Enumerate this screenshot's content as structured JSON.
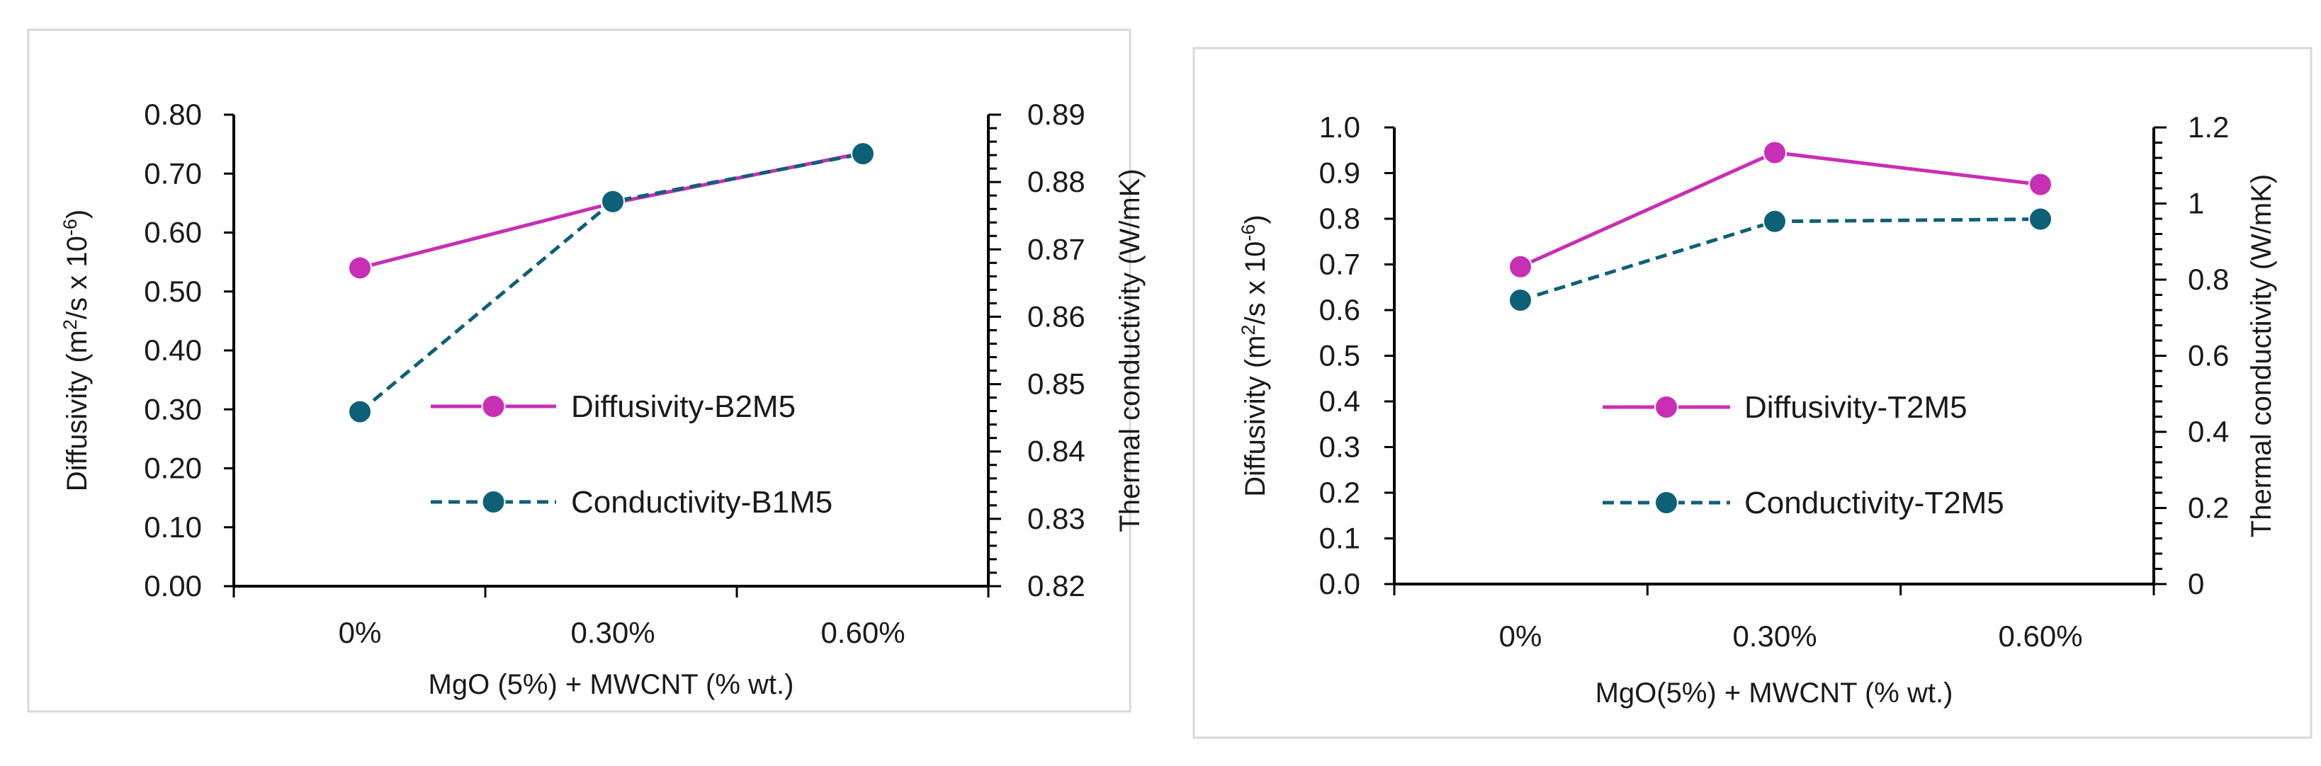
{
  "chart_data": [
    {
      "type": "line",
      "categories": [
        "0%",
        "0.30%",
        "0.60%"
      ],
      "xlabel": "MgO (5%) +  MWCNT (% wt.)",
      "y_left": {
        "label_pre": "Diffusivity (m",
        "label_sup1": "2",
        "label_mid": "/s x 10",
        "label_sup2": "-6",
        "label_post": ")",
        "min": 0.0,
        "max": 0.8,
        "ticks": [
          "0.00",
          "0.10",
          "0.20",
          "0.30",
          "0.40",
          "0.50",
          "0.60",
          "0.70",
          "0.80"
        ]
      },
      "y_right": {
        "label": "Thermal conductivity (W/mK)",
        "min": 0.82,
        "max": 0.89,
        "ticks": [
          "0.82",
          "0.83",
          "0.84",
          "0.85",
          "0.86",
          "0.87",
          "0.88",
          "0.89"
        ]
      },
      "series": [
        {
          "name": "Diffusivity-B2M5",
          "axis": "left",
          "values": [
            0.54,
            0.65,
            0.735
          ],
          "color": "#c82fb4",
          "dash": "solid"
        },
        {
          "name": "Conductivity-B1M5",
          "axis": "right",
          "values": [
            0.8459,
            0.8771,
            0.8842
          ],
          "color": "#0e6077",
          "dash": "dashed"
        }
      ]
    },
    {
      "type": "line",
      "categories": [
        "0%",
        "0.30%",
        "0.60%"
      ],
      "xlabel": "MgO(5%) + MWCNT (% wt.)",
      "y_left": {
        "label_pre": "Diffusivity (m",
        "label_sup1": "2",
        "label_mid": "/s x 10",
        "label_sup2": "-6",
        "label_post": ")",
        "min": 0.0,
        "max": 1.0,
        "ticks": [
          "0.0",
          "0.1",
          "0.2",
          "0.3",
          "0.4",
          "0.5",
          "0.6",
          "0.7",
          "0.8",
          "0.9",
          "1.0"
        ]
      },
      "y_right": {
        "label": "Thermal conductivity (W/mK)",
        "min": 0.0,
        "max": 1.2,
        "ticks": [
          "0",
          "0.2",
          "0.4",
          "0.6",
          "0.8",
          "1",
          "1.2"
        ]
      },
      "series": [
        {
          "name": "Diffusivity-T2M5",
          "axis": "left",
          "values": [
            0.695,
            0.945,
            0.875
          ],
          "color": "#c82fb4",
          "dash": "solid"
        },
        {
          "name": "Conductivity-T2M5",
          "axis": "right",
          "values": [
            0.746,
            0.953,
            0.959
          ],
          "color": "#0e6077",
          "dash": "dashed"
        }
      ]
    }
  ]
}
